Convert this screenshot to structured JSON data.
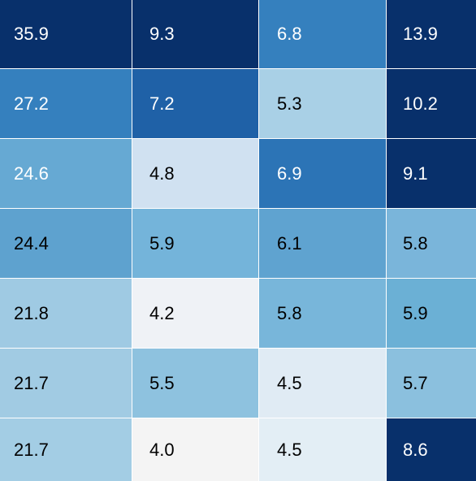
{
  "chart_data": {
    "type": "heatmap",
    "rows": 7,
    "columns": 4,
    "values": [
      [
        35.9,
        9.3,
        6.8,
        13.9
      ],
      [
        27.2,
        7.2,
        5.3,
        10.2
      ],
      [
        24.6,
        4.8,
        6.9,
        9.1
      ],
      [
        24.4,
        5.9,
        6.1,
        5.8
      ],
      [
        21.8,
        4.2,
        5.8,
        5.9
      ],
      [
        21.7,
        5.5,
        4.5,
        5.7
      ],
      [
        21.7,
        4.0,
        4.5,
        8.6
      ]
    ],
    "labels": [
      [
        "35.9",
        "9.3",
        "6.8",
        "13.9"
      ],
      [
        "27.2",
        "7.2",
        "5.3",
        "10.2"
      ],
      [
        "24.6",
        "4.8",
        "6.9",
        "9.1"
      ],
      [
        "24.4",
        "5.9",
        "6.1",
        "5.8"
      ],
      [
        "21.8",
        "4.2",
        "5.8",
        "5.9"
      ],
      [
        "21.7",
        "5.5",
        "4.5",
        "5.7"
      ],
      [
        "21.7",
        "4.0",
        "4.5",
        "8.6"
      ]
    ],
    "colors": [
      [
        "#08306b",
        "#08306b",
        "#3580be",
        "#08306b"
      ],
      [
        "#3580be",
        "#1f61a7",
        "#a9d0e6",
        "#08306b"
      ],
      [
        "#66a9d3",
        "#d0e1f1",
        "#2c74b6",
        "#08306b"
      ],
      [
        "#5ea2cf",
        "#74b4da",
        "#5fa3d0",
        "#7ab5da"
      ],
      [
        "#9fcae3",
        "#eff2f6",
        "#78b6da",
        "#6bb0d5"
      ],
      [
        "#a1cbe3",
        "#8ec2df",
        "#e0ebf4",
        "#8bc0de"
      ],
      [
        "#a3cde4",
        "#f4f4f4",
        "#e3eef5",
        "#08306b"
      ]
    ],
    "text_colors": [
      [
        "#ffffff",
        "#ffffff",
        "#ffffff",
        "#ffffff"
      ],
      [
        "#ffffff",
        "#ffffff",
        "#000000",
        "#ffffff"
      ],
      [
        "#ffffff",
        "#000000",
        "#ffffff",
        "#ffffff"
      ],
      [
        "#000000",
        "#000000",
        "#000000",
        "#000000"
      ],
      [
        "#000000",
        "#000000",
        "#000000",
        "#000000"
      ],
      [
        "#000000",
        "#000000",
        "#000000",
        "#000000"
      ],
      [
        "#000000",
        "#000000",
        "#000000",
        "#ffffff"
      ]
    ],
    "colormap": "Blues",
    "title": "",
    "xlabel": "",
    "ylabel": "",
    "grid": false,
    "legend": "none"
  }
}
